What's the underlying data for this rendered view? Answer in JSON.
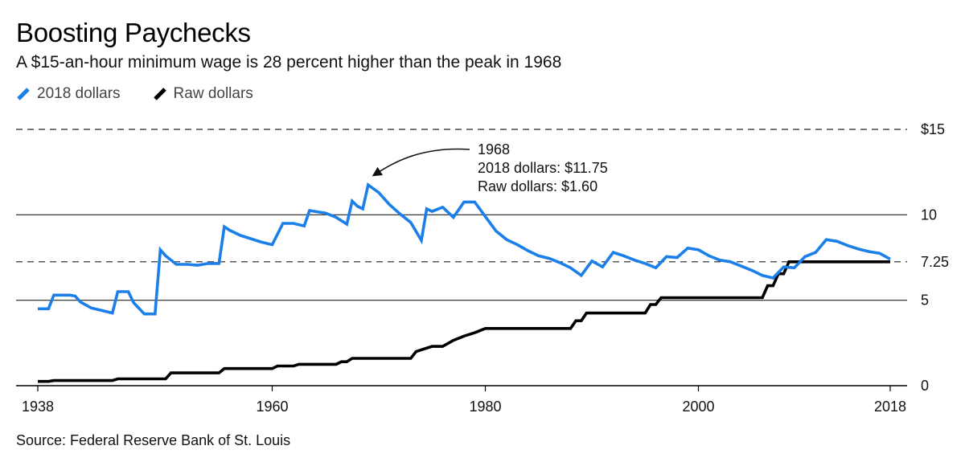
{
  "chart_data": {
    "type": "line",
    "title": "Boosting Paychecks",
    "subtitle": "A $15-an-hour minimum wage is 28 percent higher than the peak in 1968",
    "source": "Source: Federal Reserve Bank of St. Louis",
    "xlim": [
      1938,
      2018
    ],
    "ylim": [
      0,
      15
    ],
    "x_ticks": [
      {
        "value": 1938,
        "label": "1938"
      },
      {
        "value": 1960,
        "label": "1960"
      },
      {
        "value": 1980,
        "label": "1980"
      },
      {
        "value": 2000,
        "label": "2000"
      },
      {
        "value": 2018,
        "label": "2018"
      }
    ],
    "y_ticks": [
      {
        "value": 0,
        "label": "0",
        "style": "solid"
      },
      {
        "value": 5,
        "label": "5",
        "style": "solid"
      },
      {
        "value": 7.25,
        "label": "7.25",
        "style": "dashed"
      },
      {
        "value": 10,
        "label": "10",
        "style": "solid"
      },
      {
        "value": 15,
        "label": "$15",
        "style": "dashed"
      }
    ],
    "series": [
      {
        "name": "2018 dollars",
        "color": "#1a7fe8",
        "points": [
          [
            1938,
            4.5
          ],
          [
            1939,
            4.5
          ],
          [
            1939.5,
            5.3
          ],
          [
            1941,
            5.3
          ],
          [
            1941.5,
            5.25
          ],
          [
            1942,
            4.9
          ],
          [
            1943,
            4.55
          ],
          [
            1944,
            4.4
          ],
          [
            1945,
            4.25
          ],
          [
            1945.5,
            5.5
          ],
          [
            1946.5,
            5.5
          ],
          [
            1947,
            4.85
          ],
          [
            1948,
            4.2
          ],
          [
            1949,
            4.2
          ],
          [
            1949.5,
            7.95
          ],
          [
            1950,
            7.6
          ],
          [
            1951,
            7.1
          ],
          [
            1952,
            7.1
          ],
          [
            1953,
            7.05
          ],
          [
            1954,
            7.15
          ],
          [
            1955,
            7.15
          ],
          [
            1955.5,
            9.3
          ],
          [
            1956,
            9.1
          ],
          [
            1957,
            8.8
          ],
          [
            1958,
            8.6
          ],
          [
            1959,
            8.4
          ],
          [
            1960,
            8.25
          ],
          [
            1961,
            9.5
          ],
          [
            1962,
            9.5
          ],
          [
            1963,
            9.35
          ],
          [
            1963.5,
            10.25
          ],
          [
            1964,
            10.2
          ],
          [
            1965,
            10.1
          ],
          [
            1966,
            9.85
          ],
          [
            1967,
            9.45
          ],
          [
            1967.5,
            10.8
          ],
          [
            1968,
            10.5
          ],
          [
            1968.5,
            10.35
          ],
          [
            1969,
            11.75
          ],
          [
            1970,
            11.3
          ],
          [
            1971,
            10.6
          ],
          [
            1972,
            10.05
          ],
          [
            1973,
            9.55
          ],
          [
            1974,
            8.5
          ],
          [
            1974.5,
            10.35
          ],
          [
            1975,
            10.2
          ],
          [
            1976,
            10.45
          ],
          [
            1977,
            9.85
          ],
          [
            1978,
            10.75
          ],
          [
            1979,
            10.75
          ],
          [
            1980,
            9.9
          ],
          [
            1981,
            9.05
          ],
          [
            1982,
            8.55
          ],
          [
            1983,
            8.25
          ],
          [
            1984,
            7.9
          ],
          [
            1985,
            7.6
          ],
          [
            1986,
            7.45
          ],
          [
            1987,
            7.2
          ],
          [
            1988,
            6.9
          ],
          [
            1989,
            6.45
          ],
          [
            1990,
            7.3
          ],
          [
            1991,
            6.95
          ],
          [
            1992,
            7.8
          ],
          [
            1993,
            7.6
          ],
          [
            1994,
            7.35
          ],
          [
            1995,
            7.15
          ],
          [
            1996,
            6.9
          ],
          [
            1997,
            7.55
          ],
          [
            1998,
            7.5
          ],
          [
            1999,
            8.05
          ],
          [
            2000,
            7.95
          ],
          [
            2001,
            7.6
          ],
          [
            2002,
            7.35
          ],
          [
            2003,
            7.25
          ],
          [
            2004,
            7.0
          ],
          [
            2005,
            6.75
          ],
          [
            2006,
            6.45
          ],
          [
            2007,
            6.3
          ],
          [
            2008,
            6.95
          ],
          [
            2009,
            6.9
          ],
          [
            2010,
            7.55
          ],
          [
            2011,
            7.8
          ],
          [
            2012,
            8.55
          ],
          [
            2013,
            8.45
          ],
          [
            2014,
            8.2
          ],
          [
            2015,
            8.0
          ],
          [
            2016,
            7.85
          ],
          [
            2017,
            7.75
          ],
          [
            2018,
            7.4
          ]
        ]
      },
      {
        "name": "Raw dollars",
        "color": "#000000",
        "points": [
          [
            1938,
            0.25
          ],
          [
            1939,
            0.25
          ],
          [
            1939.5,
            0.3
          ],
          [
            1945,
            0.3
          ],
          [
            1945.5,
            0.4
          ],
          [
            1950,
            0.4
          ],
          [
            1950.5,
            0.75
          ],
          [
            1955,
            0.75
          ],
          [
            1955.5,
            1.0
          ],
          [
            1960,
            1.0
          ],
          [
            1960.5,
            1.15
          ],
          [
            1962,
            1.15
          ],
          [
            1962.5,
            1.25
          ],
          [
            1966,
            1.25
          ],
          [
            1966.5,
            1.4
          ],
          [
            1967,
            1.4
          ],
          [
            1967.5,
            1.6
          ],
          [
            1973,
            1.6
          ],
          [
            1973.5,
            2.0
          ],
          [
            1974,
            2.1
          ],
          [
            1975,
            2.3
          ],
          [
            1976,
            2.3
          ],
          [
            1977,
            2.65
          ],
          [
            1978,
            2.9
          ],
          [
            1979,
            3.1
          ],
          [
            1980,
            3.35
          ],
          [
            1988,
            3.35
          ],
          [
            1988.5,
            3.8
          ],
          [
            1989,
            3.8
          ],
          [
            1989.5,
            4.25
          ],
          [
            1995,
            4.25
          ],
          [
            1995.5,
            4.75
          ],
          [
            1996,
            4.75
          ],
          [
            1996.5,
            5.15
          ],
          [
            2006,
            5.15
          ],
          [
            2006.5,
            5.85
          ],
          [
            2007,
            5.85
          ],
          [
            2007.5,
            6.55
          ],
          [
            2008,
            6.55
          ],
          [
            2008.5,
            7.25
          ],
          [
            2018,
            7.25
          ]
        ]
      }
    ],
    "annotation": {
      "x": 1969,
      "y": 11.75,
      "lines": [
        "1968",
        "2018 dollars: $11.75",
        "Raw dollars: $1.60"
      ]
    }
  }
}
